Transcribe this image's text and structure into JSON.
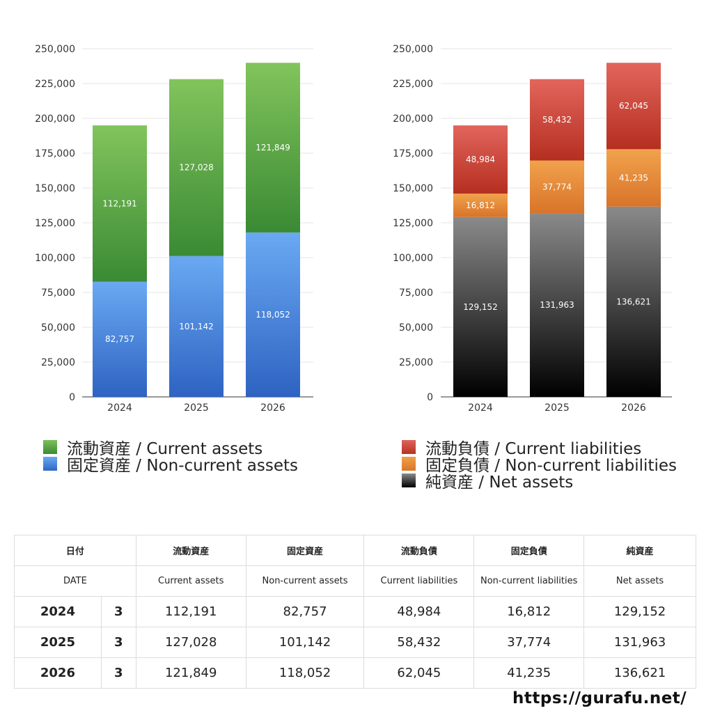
{
  "chart_data": [
    {
      "type": "bar",
      "stacked": true,
      "categories": [
        "2024",
        "2025",
        "2026"
      ],
      "series": [
        {
          "name": "固定資産 / Non-current assets",
          "values": [
            82757,
            101142,
            118052
          ],
          "color": "#4a89e0"
        },
        {
          "name": "流動資産 / Current assets",
          "values": [
            112191,
            127028,
            121849
          ],
          "color": "#5aa845"
        }
      ],
      "ylim": [
        0,
        250000
      ],
      "yticks": [
        "0",
        "25,000",
        "50,000",
        "75,000",
        "100,000",
        "125,000",
        "150,000",
        "175,000",
        "200,000",
        "225,000",
        "250,000"
      ],
      "grid": true,
      "legend": "bottom"
    },
    {
      "type": "bar",
      "stacked": true,
      "categories": [
        "2024",
        "2025",
        "2026"
      ],
      "series": [
        {
          "name": "純資産 / Net assets",
          "values": [
            129152,
            131963,
            136621
          ],
          "color": "#444444"
        },
        {
          "name": "固定負債 / Non-current liabilities",
          "values": [
            16812,
            37774,
            41235
          ],
          "color": "#e38a3a"
        },
        {
          "name": "流動負債 / Current liabilities",
          "values": [
            48984,
            58432,
            62045
          ],
          "color": "#d14b3c"
        }
      ],
      "ylim": [
        0,
        250000
      ],
      "yticks": [
        "0",
        "25,000",
        "50,000",
        "75,000",
        "100,000",
        "125,000",
        "150,000",
        "175,000",
        "200,000",
        "225,000",
        "250,000"
      ],
      "grid": true,
      "legend": "bottom"
    }
  ],
  "legend_left": [
    "流動資産 / Current assets",
    "固定資産 / Non-current assets"
  ],
  "legend_right": [
    "流動負債 / Current liabilities",
    "固定負債 / Non-current liabilities",
    "純資産 / Net assets"
  ],
  "table": {
    "header_jp": [
      "日付",
      "流動資産",
      "固定資産",
      "流動負債",
      "固定負債",
      "純資産"
    ],
    "header_en": [
      "DATE",
      "Current assets",
      "Non-current assets",
      "Current liabilities",
      "Non-current liabilities",
      "Net assets"
    ],
    "rows": [
      {
        "year": "2024",
        "month": "3",
        "values": [
          "112,191",
          "82,757",
          "48,984",
          "16,812",
          "129,152"
        ]
      },
      {
        "year": "2025",
        "month": "3",
        "values": [
          "127,028",
          "101,142",
          "58,432",
          "37,774",
          "131,963"
        ]
      },
      {
        "year": "2026",
        "month": "3",
        "values": [
          "121,849",
          "118,052",
          "62,045",
          "41,235",
          "136,621"
        ]
      }
    ]
  },
  "site_url": "https://gurafu.net/"
}
